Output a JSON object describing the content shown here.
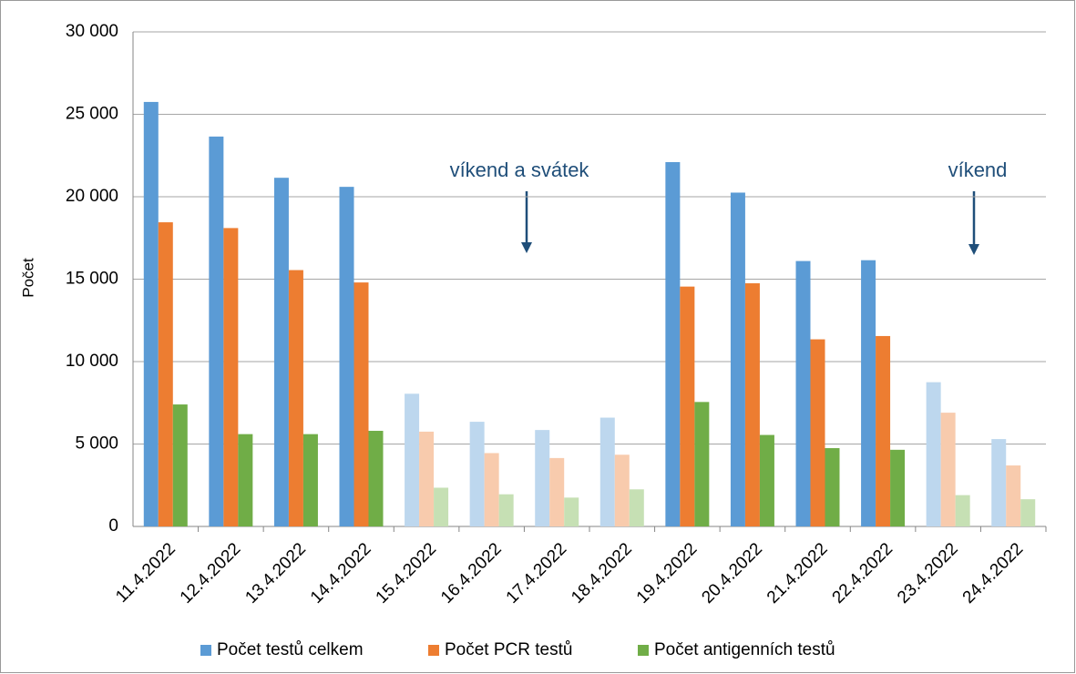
{
  "chart_data": {
    "type": "bar",
    "y_label": "Počet",
    "categories": [
      "11.4.2022",
      "12.4.2022",
      "13.4.2022",
      "14.4.2022",
      "15.4.2022",
      "16.4.2022",
      "17.4.2022",
      "18.4.2022",
      "19.4.2022",
      "20.4.2022",
      "21.4.2022",
      "22.4.2022",
      "23.4.2022",
      "24.4.2022"
    ],
    "series": [
      {
        "name": "Počet testů celkem",
        "color": "#5b9bd5",
        "colors": [
          "#5b9bd5",
          "#5b9bd5",
          "#5b9bd5",
          "#5b9bd5",
          "#bdd7ee",
          "#bdd7ee",
          "#bdd7ee",
          "#bdd7ee",
          "#5b9bd5",
          "#5b9bd5",
          "#5b9bd5",
          "#5b9bd5",
          "#bdd7ee",
          "#bdd7ee"
        ],
        "values": [
          25750,
          23650,
          21150,
          20600,
          8050,
          6350,
          5850,
          6600,
          22100,
          20250,
          16100,
          16150,
          8750,
          5300
        ]
      },
      {
        "name": "Počet PCR testů",
        "color": "#ed7d31",
        "colors": [
          "#ed7d31",
          "#ed7d31",
          "#ed7d31",
          "#ed7d31",
          "#f8cbad",
          "#f8cbad",
          "#f8cbad",
          "#f8cbad",
          "#ed7d31",
          "#ed7d31",
          "#ed7d31",
          "#ed7d31",
          "#f8cbad",
          "#f8cbad"
        ],
        "values": [
          18450,
          18100,
          15550,
          14800,
          5750,
          4450,
          4150,
          4350,
          14550,
          14750,
          11350,
          11550,
          6900,
          3700
        ]
      },
      {
        "name": "Počet antigenních testů",
        "color": "#70ad47",
        "colors": [
          "#70ad47",
          "#70ad47",
          "#70ad47",
          "#70ad47",
          "#c6e0b4",
          "#c6e0b4",
          "#c6e0b4",
          "#c6e0b4",
          "#70ad47",
          "#70ad47",
          "#70ad47",
          "#70ad47",
          "#c6e0b4",
          "#c6e0b4"
        ],
        "values": [
          7400,
          5600,
          5600,
          5800,
          2350,
          1950,
          1750,
          2250,
          7550,
          5550,
          4750,
          4650,
          1900,
          1650
        ]
      }
    ],
    "ylim": [
      0,
      30000
    ],
    "yticks": [
      0,
      {
        "value": 5000,
        "label": "5 000"
      },
      {
        "value": 10000,
        "label": "10 000"
      },
      {
        "value": 15000,
        "label": "15 000"
      },
      {
        "value": 20000,
        "label": "20 000"
      },
      {
        "value": 25000,
        "label": "25 000"
      },
      {
        "value": 30000,
        "label": "30 000"
      }
    ],
    "grid": true,
    "legend": "bottom",
    "annotations": [
      {
        "text": "víkend a svátek"
      },
      {
        "text": "víkend"
      }
    ]
  }
}
